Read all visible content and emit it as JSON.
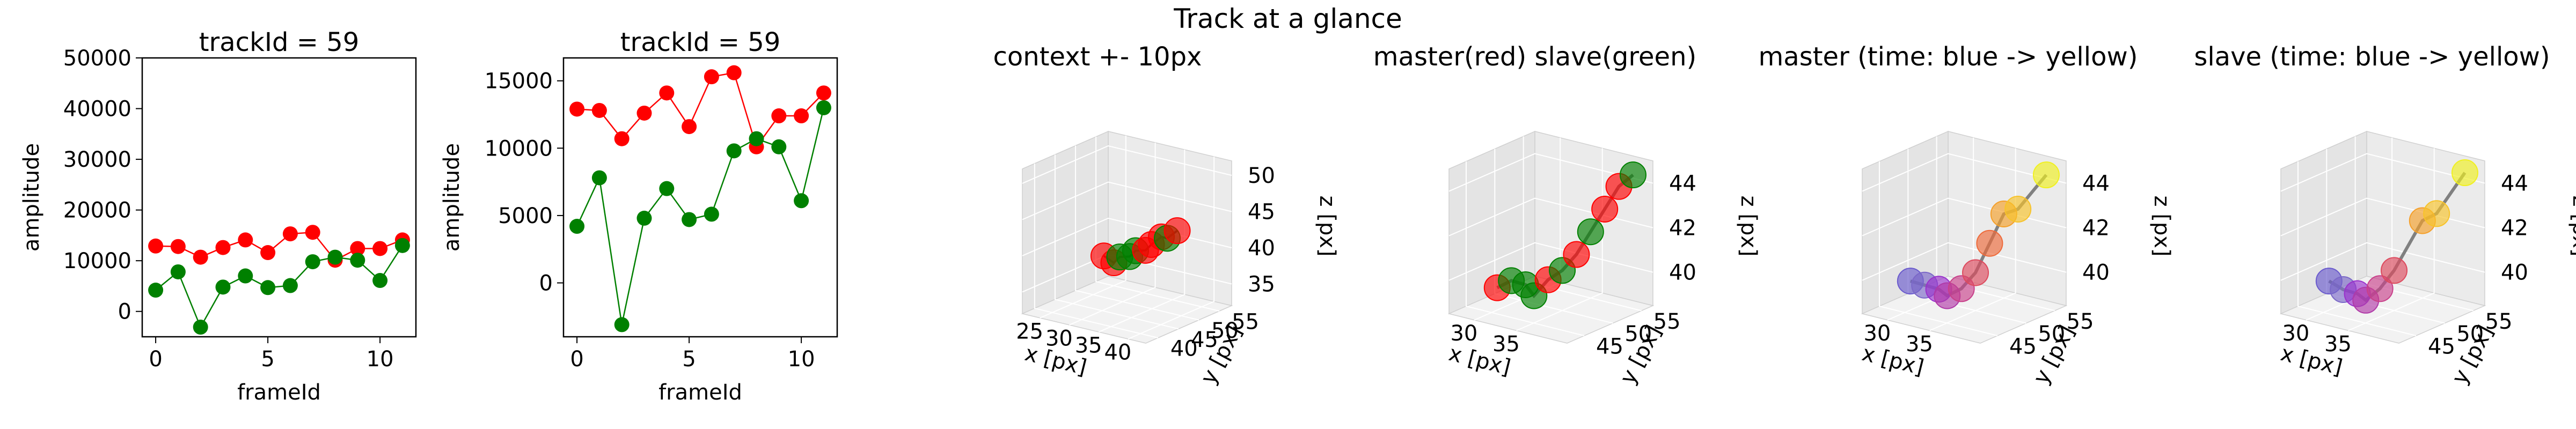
{
  "figure_title": "Track at a glance",
  "chart_data": [
    {
      "type": "line",
      "title": "trackId = 59",
      "xlabel": "frameId",
      "ylabel": "amplitude",
      "xlim": [
        -0.6,
        11.6
      ],
      "ylim": [
        -5000,
        50000
      ],
      "xticks": [
        "0",
        "5",
        "10"
      ],
      "yticks": [
        "0",
        "10000",
        "20000",
        "30000",
        "40000",
        "50000"
      ],
      "x": [
        0,
        1,
        2,
        3,
        4,
        5,
        6,
        7,
        8,
        9,
        10,
        11
      ],
      "series": [
        {
          "color": "#ff0000",
          "values": [
            12900,
            12800,
            10700,
            12600,
            14100,
            11600,
            15300,
            15600,
            10100,
            12400,
            12400,
            14100
          ]
        },
        {
          "color": "#008000",
          "values": [
            4200,
            7800,
            -3100,
            4800,
            7000,
            4700,
            5100,
            9800,
            10700,
            10100,
            6100,
            13000
          ]
        }
      ]
    },
    {
      "type": "line",
      "title": "trackId = 59",
      "xlabel": "frameId",
      "ylabel": "amplitude",
      "xlim": [
        -0.6,
        11.6
      ],
      "ylim": [
        -4000,
        16700
      ],
      "xticks": [
        "0",
        "5",
        "10"
      ],
      "yticks": [
        "0",
        "5000",
        "10000",
        "15000"
      ],
      "x": [
        0,
        1,
        2,
        3,
        4,
        5,
        6,
        7,
        8,
        9,
        10,
        11
      ],
      "series": [
        {
          "color": "#ff0000",
          "values": [
            12900,
            12800,
            10700,
            12600,
            14100,
            11600,
            15300,
            15600,
            10100,
            12400,
            12400,
            14100
          ]
        },
        {
          "color": "#008000",
          "values": [
            4200,
            7800,
            -3100,
            4800,
            7000,
            4700,
            5100,
            9800,
            10700,
            10100,
            6100,
            13000
          ]
        }
      ]
    },
    {
      "type": "scatter",
      "title": "context +- 10px",
      "xlabel": "x [px]",
      "ylabel": "y [px]",
      "zlabel": "z [px]",
      "xticks": [
        "25",
        "30",
        "35",
        "40"
      ],
      "yticks": [
        "40",
        "45",
        "50",
        "55"
      ],
      "zticks": [
        "35",
        "40",
        "45",
        "50"
      ],
      "points": [
        {
          "x": 31,
          "y": 44,
          "z": 40,
          "color": "#ff0000"
        },
        {
          "x": 32,
          "y": 45,
          "z": 39,
          "color": "#ff0000"
        },
        {
          "x": 33,
          "y": 45,
          "z": 40,
          "color": "#008000"
        },
        {
          "x": 34,
          "y": 46,
          "z": 40,
          "color": "#008000"
        },
        {
          "x": 35,
          "y": 46,
          "z": 41,
          "color": "#008000"
        },
        {
          "x": 36,
          "y": 47,
          "z": 41,
          "color": "#ff0000"
        },
        {
          "x": 37,
          "y": 47,
          "z": 42,
          "color": "#ff0000"
        },
        {
          "x": 38,
          "y": 48,
          "z": 43,
          "color": "#ff0000"
        },
        {
          "x": 39,
          "y": 48,
          "z": 43,
          "color": "#008000"
        },
        {
          "x": 40,
          "y": 49,
          "z": 44,
          "color": "#ff0000"
        }
      ]
    },
    {
      "type": "scatter",
      "title": "master(red) slave(green)",
      "xlabel": "x [px]",
      "ylabel": "y [px]",
      "zlabel": "z [px]",
      "xticks": [
        "30",
        "35"
      ],
      "yticks": [
        "45",
        "50",
        "55"
      ],
      "zticks": [
        "40",
        "42",
        "44"
      ],
      "points": [
        {
          "x": 30,
          "y": 46,
          "z": 39.5,
          "color": "#ff0000"
        },
        {
          "x": 31,
          "y": 47,
          "z": 39.8,
          "color": "#008000"
        },
        {
          "x": 32,
          "y": 48,
          "z": 39.6,
          "color": "#008000"
        },
        {
          "x": 33,
          "y": 48,
          "z": 39.2,
          "color": "#008000"
        },
        {
          "x": 34,
          "y": 49,
          "z": 39.9,
          "color": "#ff0000"
        },
        {
          "x": 35,
          "y": 50,
          "z": 40.3,
          "color": "#008000"
        },
        {
          "x": 36,
          "y": 51,
          "z": 41.0,
          "color": "#ff0000"
        },
        {
          "x": 37,
          "y": 52,
          "z": 42.0,
          "color": "#008000"
        },
        {
          "x": 38,
          "y": 53,
          "z": 43.0,
          "color": "#ff0000"
        },
        {
          "x": 39,
          "y": 54,
          "z": 44.0,
          "color": "#ff0000"
        },
        {
          "x": 40,
          "y": 55,
          "z": 44.5,
          "color": "#008000"
        }
      ]
    },
    {
      "type": "scatter",
      "title": "master (time: blue -> yellow)",
      "xlabel": "x [px]",
      "ylabel": "y [px]",
      "zlabel": "z [px]",
      "xticks": [
        "30",
        "35"
      ],
      "yticks": [
        "45",
        "50",
        "55"
      ],
      "zticks": [
        "40",
        "42",
        "44"
      ],
      "points": [
        {
          "x": 30,
          "y": 46,
          "z": 39.8,
          "color": "#6a5acd"
        },
        {
          "x": 31,
          "y": 47,
          "z": 39.6,
          "color": "#7b68c8"
        },
        {
          "x": 32,
          "y": 48,
          "z": 39.4,
          "color": "#9932cc"
        },
        {
          "x": 33,
          "y": 48,
          "z": 39.2,
          "color": "#b03aa8"
        },
        {
          "x": 34,
          "y": 49,
          "z": 39.5,
          "color": "#c8408a"
        },
        {
          "x": 35,
          "y": 50,
          "z": 40.2,
          "color": "#dd4a5e"
        },
        {
          "x": 36,
          "y": 51,
          "z": 41.5,
          "color": "#ee6a3a"
        },
        {
          "x": 37,
          "y": 52,
          "z": 42.8,
          "color": "#f5a02a"
        },
        {
          "x": 38,
          "y": 53,
          "z": 43.0,
          "color": "#f7c32a"
        },
        {
          "x": 40,
          "y": 55,
          "z": 44.5,
          "color": "#f0f020"
        }
      ]
    },
    {
      "type": "scatter",
      "title": "slave (time: blue -> yellow)",
      "xlabel": "x [px]",
      "ylabel": "y [px]",
      "zlabel": "z [px]",
      "xticks": [
        "30",
        "35"
      ],
      "yticks": [
        "45",
        "50",
        "55"
      ],
      "zticks": [
        "40",
        "42",
        "44"
      ],
      "points": [
        {
          "x": 30,
          "y": 46,
          "z": 39.8,
          "color": "#6a5acd"
        },
        {
          "x": 31,
          "y": 47,
          "z": 39.4,
          "color": "#7b68c8"
        },
        {
          "x": 32,
          "y": 48,
          "z": 39.2,
          "color": "#9932cc"
        },
        {
          "x": 33,
          "y": 48,
          "z": 39.0,
          "color": "#b03aa8"
        },
        {
          "x": 34,
          "y": 49,
          "z": 39.5,
          "color": "#c8408a"
        },
        {
          "x": 35,
          "y": 50,
          "z": 40.3,
          "color": "#dd4a5e"
        },
        {
          "x": 37,
          "y": 52,
          "z": 42.5,
          "color": "#f5a02a"
        },
        {
          "x": 38,
          "y": 53,
          "z": 42.8,
          "color": "#f7c32a"
        },
        {
          "x": 40,
          "y": 55,
          "z": 44.6,
          "color": "#f0f020"
        }
      ]
    }
  ]
}
